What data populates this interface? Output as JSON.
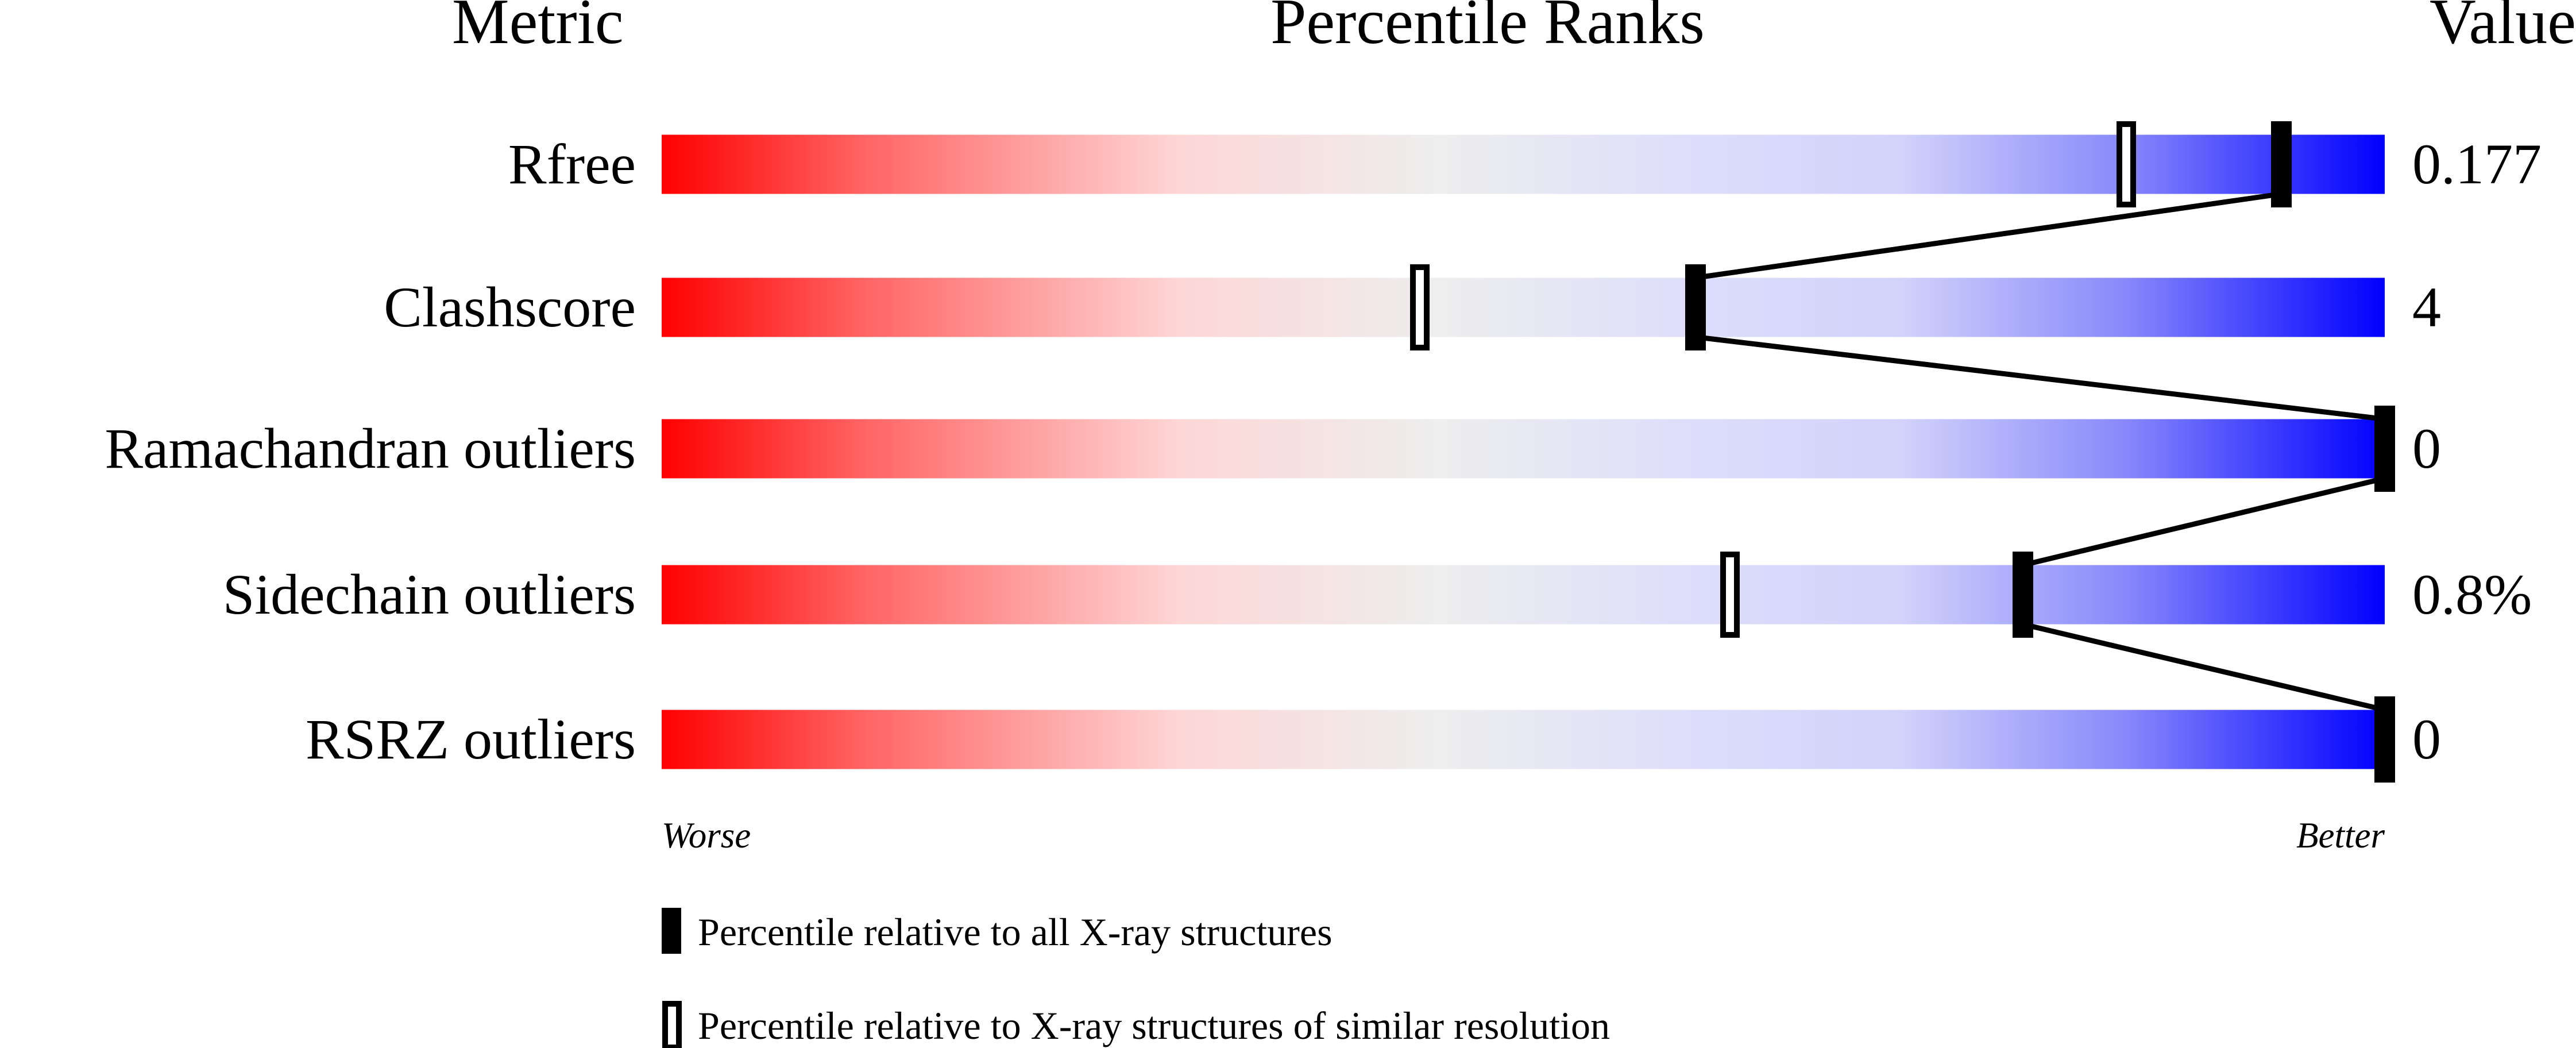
{
  "chart_data": {
    "type": "percentile-slider",
    "headers": {
      "metric": "Metric",
      "ranks": "Percentile Ranks",
      "value": "Value"
    },
    "xlim": [
      0,
      100
    ],
    "axis_labels": {
      "left": "Worse",
      "right": "Better"
    },
    "metrics": [
      {
        "label": "Rfree",
        "value": "0.177",
        "percentile_all": 94,
        "percentile_similar": 85
      },
      {
        "label": "Clashscore",
        "value": "4",
        "percentile_all": 60,
        "percentile_similar": 44
      },
      {
        "label": "Ramachandran outliers",
        "value": "0",
        "percentile_all": 100,
        "percentile_similar": null
      },
      {
        "label": "Sidechain outliers",
        "value": "0.8%",
        "percentile_all": 79,
        "percentile_similar": 62
      },
      {
        "label": "RSRZ outliers",
        "value": "0",
        "percentile_all": 100,
        "percentile_similar": null
      }
    ],
    "legend": [
      {
        "marker": "filled",
        "label": "Percentile relative to all X-ray structures"
      },
      {
        "marker": "open",
        "label": "Percentile relative to X-ray structures of similar resolution"
      }
    ],
    "colors": {
      "worse": "#ff0000",
      "middle": "#eeeeee",
      "better": "#0000ff"
    }
  }
}
